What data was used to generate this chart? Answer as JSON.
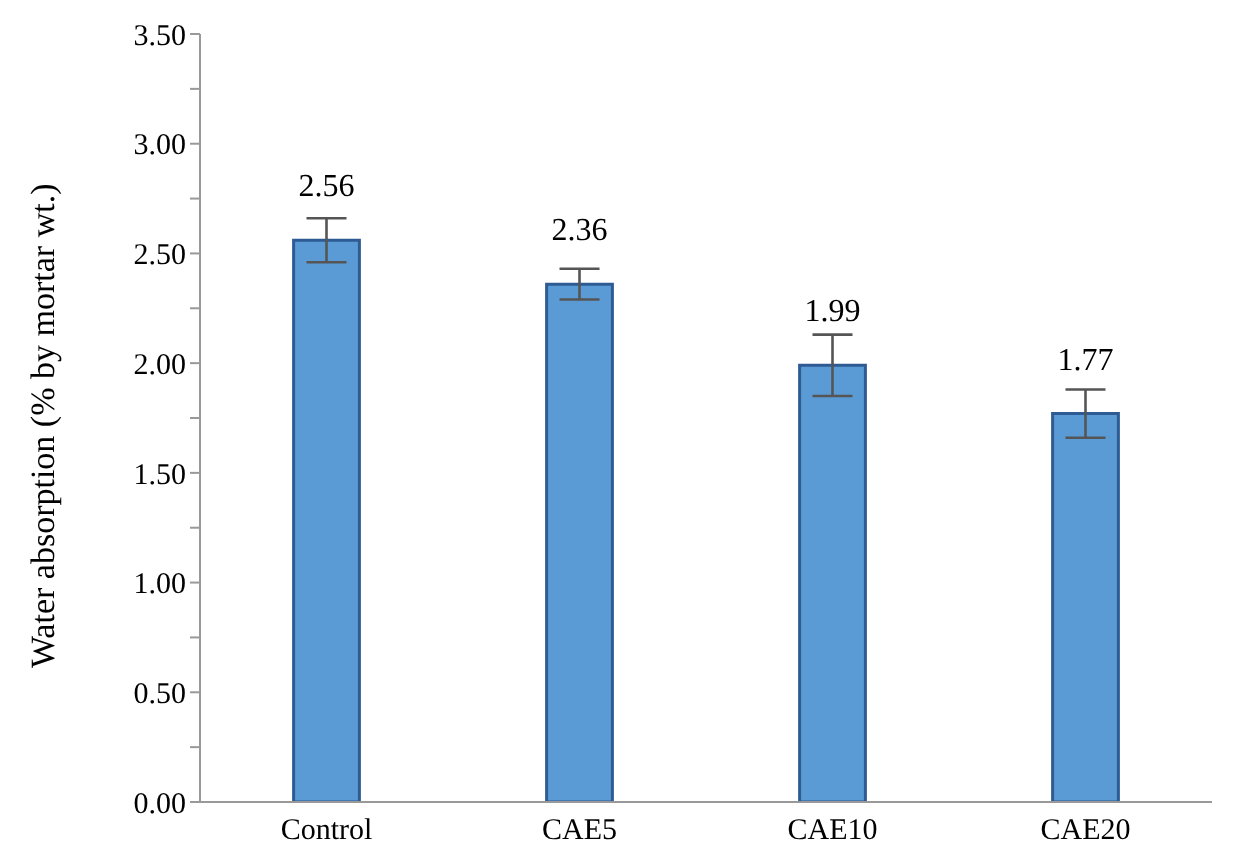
{
  "chart_data": {
    "type": "bar",
    "ylabel": "Water absorption (% by mortar wt.)",
    "categories": [
      "Control",
      "CAE5",
      "CAE10",
      "CAE20"
    ],
    "series": [
      {
        "color": "#5b9bd5",
        "values": [
          2.56,
          2.36,
          1.99,
          1.77
        ],
        "errors": [
          0.1,
          0.07,
          0.14,
          0.11
        ]
      }
    ],
    "data_labels": true,
    "ylim": [
      0,
      3.5
    ],
    "yticks": [
      {
        "value": 0,
        "label": "0.00"
      },
      {
        "value": 0.25,
        "label": null
      },
      {
        "value": 0.5,
        "label": "0.50"
      },
      {
        "value": 0.75,
        "label": null
      },
      {
        "value": 1,
        "label": "1.00"
      },
      {
        "value": 1.25,
        "label": null
      },
      {
        "value": 1.5,
        "label": "1.50"
      },
      {
        "value": 1.75,
        "label": null
      },
      {
        "value": 2,
        "label": "2.00"
      },
      {
        "value": 2.25,
        "label": null
      },
      {
        "value": 2.5,
        "label": "2.50"
      },
      {
        "value": 2.75,
        "label": null
      },
      {
        "value": 3,
        "label": "3.00"
      },
      {
        "value": 3.25,
        "label": null
      },
      {
        "value": 3.5,
        "label": "3.50"
      }
    ],
    "grid": false,
    "legend": false
  }
}
